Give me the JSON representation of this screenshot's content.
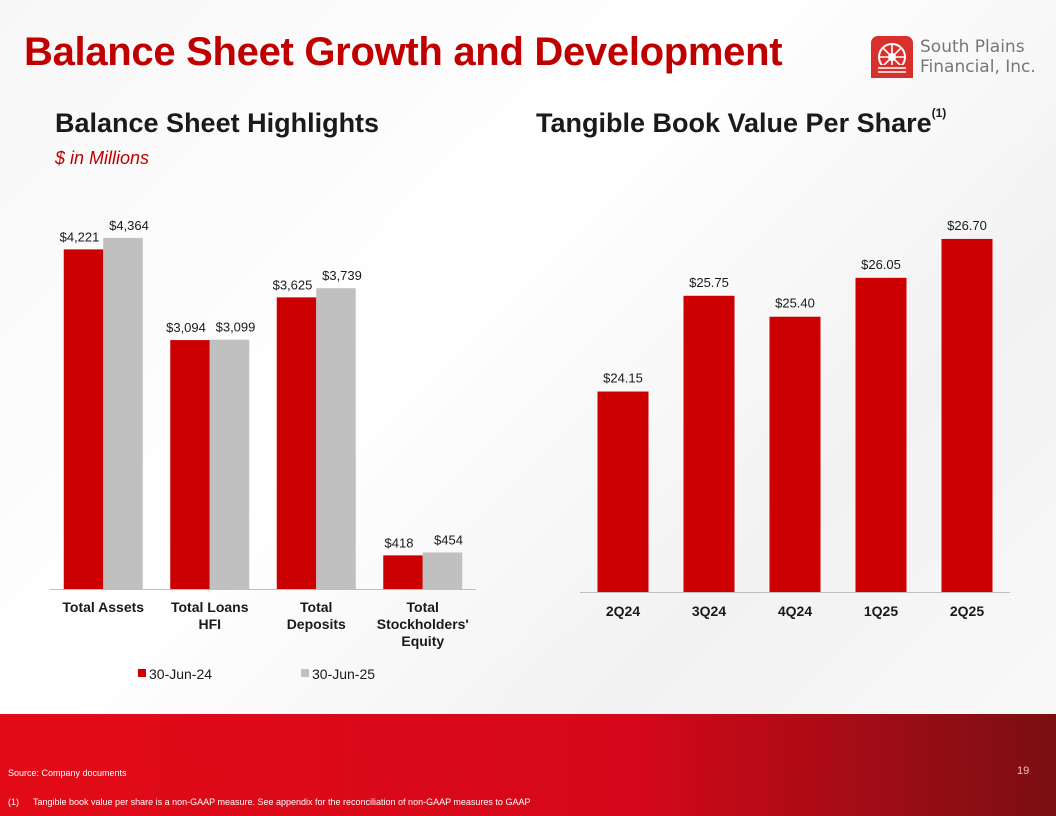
{
  "title": "Balance Sheet Growth and Development",
  "logo": {
    "line1": "South Plains",
    "line2": "Financial, Inc."
  },
  "left_panel": {
    "heading": "Balance Sheet Highlights",
    "units": "$ in Millions"
  },
  "right_panel": {
    "heading": "Tangible Book Value Per Share",
    "footnote_marker": "(1)"
  },
  "colors": {
    "brand_red": "#c00000",
    "bar_red": "#cc0000",
    "bar_gray": "#c0c0c0"
  },
  "chart_data": [
    {
      "type": "bar",
      "categories": [
        "Total Assets",
        "Total Loans HFI",
        "Total Deposits",
        "Total Stockholders' Equity"
      ],
      "category_lines": [
        [
          "Total Assets"
        ],
        [
          "Total Loans",
          "HFI"
        ],
        [
          "Total",
          "Deposits"
        ],
        [
          "Total",
          "Stockholders'",
          "Equity"
        ]
      ],
      "series": [
        {
          "name": "30-Jun-24",
          "values": [
            4221,
            3094,
            3625,
            418
          ],
          "labels": [
            "$4,221",
            "$3,094",
            "$3,625",
            "$418"
          ],
          "color": "#cc0000"
        },
        {
          "name": "30-Jun-25",
          "values": [
            4364,
            3099,
            3739,
            454
          ],
          "labels": [
            "$4,364",
            "$3,099",
            "$3,739",
            "$454"
          ],
          "color": "#c0c0c0"
        }
      ],
      "ylim": [
        0,
        4400
      ],
      "grid": false,
      "legend": "bottom"
    },
    {
      "type": "bar",
      "categories": [
        "2Q24",
        "3Q24",
        "4Q24",
        "1Q25",
        "2Q25"
      ],
      "values": [
        24.15,
        25.75,
        25.4,
        26.05,
        26.7
      ],
      "labels": [
        "$24.15",
        "$25.75",
        "$25.40",
        "$26.05",
        "$26.70"
      ],
      "color": "#cc0000",
      "ylim": [
        20.8,
        27.1
      ],
      "grid": false
    }
  ],
  "footer": {
    "source": "Source: Company documents",
    "footnote_num": "(1)",
    "footnote_text": "Tangible book value per share is a non-GAAP measure. See appendix for the reconciliation of non-GAAP measures to GAAP",
    "page_number": "19"
  }
}
